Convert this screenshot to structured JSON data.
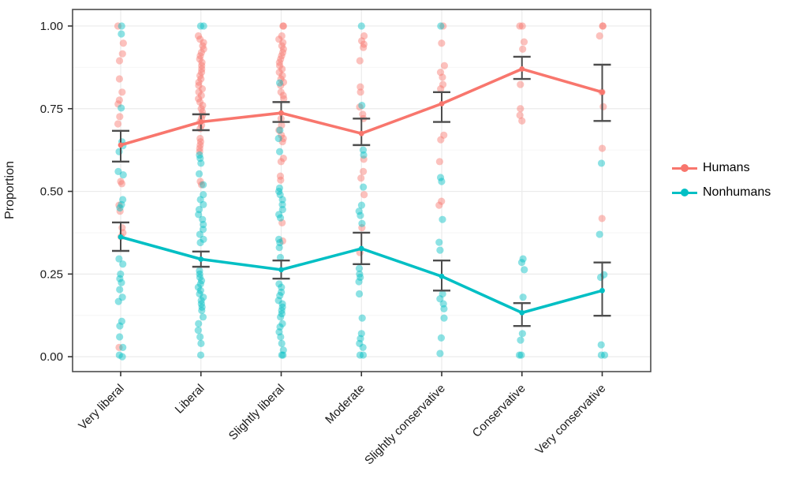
{
  "chart_data": {
    "type": "scatter",
    "title": "",
    "xlabel": "",
    "ylabel": "Proportion",
    "categories": [
      "Very liberal",
      "Liberal",
      "Slightly liberal",
      "Moderate",
      "Slightly conservative",
      "Conservative",
      "Very conservative"
    ],
    "ytick_labels": [
      "0.00",
      "0.25",
      "0.50",
      "0.75",
      "1.00"
    ],
    "yticks": [
      0.0,
      0.25,
      0.5,
      0.75,
      1.0
    ],
    "ylim": [
      -0.045,
      1.05
    ],
    "grid": "major+minor horizontal, vertical at categories",
    "legend_position": "right",
    "colors": {
      "humans": "#f8766d",
      "nonhumans": "#00bfc4",
      "errorbar": "#4d4d4d",
      "panel_border": "#4d4d4d",
      "grid_major": "#ebebeb",
      "grid_minor": "#f6f6f6",
      "axis_text": "#1a1a1a"
    },
    "series": [
      {
        "name": "Humans",
        "color": "#f8766d",
        "means": [
          0.64,
          0.71,
          0.737,
          0.675,
          0.765,
          0.87,
          0.8
        ],
        "ci_low": [
          0.59,
          0.685,
          0.71,
          0.64,
          0.71,
          0.84,
          0.713
        ],
        "ci_high": [
          0.683,
          0.733,
          0.77,
          0.72,
          0.8,
          0.907,
          0.883
        ],
        "points": [
          [
            1.0,
            0.948,
            0.916,
            0.895,
            0.84,
            0.8,
            0.776,
            0.764,
            0.726,
            0.704,
            0.53,
            0.523,
            0.458,
            0.44,
            0.39,
            0.375,
            0.363,
            0.028
          ],
          [
            0.97,
            0.96,
            0.95,
            0.94,
            0.93,
            0.92,
            0.91,
            0.9,
            0.89,
            0.88,
            0.87,
            0.86,
            0.85,
            0.84,
            0.83,
            0.82,
            0.81,
            0.8,
            0.79,
            0.78,
            0.77,
            0.76,
            0.75,
            0.74,
            0.73,
            0.72,
            0.71,
            0.7,
            0.69,
            0.66,
            0.65,
            0.64,
            0.63,
            0.62,
            0.53,
            0.52
          ],
          [
            1.0,
            1.0,
            0.97,
            0.96,
            0.95,
            0.94,
            0.93,
            0.92,
            0.91,
            0.9,
            0.89,
            0.88,
            0.87,
            0.86,
            0.85,
            0.84,
            0.83,
            0.82,
            0.8,
            0.79,
            0.78,
            0.72,
            0.7,
            0.685,
            0.67,
            0.66,
            0.65,
            0.6,
            0.59,
            0.546,
            0.534,
            0.405,
            0.35
          ],
          [
            0.97,
            0.955,
            0.945,
            0.935,
            0.895,
            0.816,
            0.8,
            0.755,
            0.733,
            0.72,
            0.597,
            0.56,
            0.54,
            0.49,
            0.39,
            0.315
          ],
          [
            1.0,
            0.948,
            0.88,
            0.86,
            0.845,
            0.823,
            0.81,
            0.67,
            0.656,
            0.59,
            0.47,
            0.458
          ],
          [
            1.0,
            1.0,
            0.952,
            0.93,
            0.823,
            0.75,
            0.73,
            0.713
          ],
          [
            1.0,
            1.0,
            0.97,
            0.8,
            0.756,
            0.63,
            0.418
          ]
        ]
      },
      {
        "name": "Nonhumans",
        "color": "#00bfc4",
        "means": [
          0.362,
          0.295,
          0.263,
          0.327,
          0.243,
          0.133,
          0.2
        ],
        "ci_low": [
          0.32,
          0.272,
          0.236,
          0.28,
          0.2,
          0.093,
          0.124
        ],
        "ci_high": [
          0.406,
          0.318,
          0.291,
          0.375,
          0.291,
          0.162,
          0.285
        ],
        "points": [
          [
            1.0,
            0.976,
            0.752,
            0.65,
            0.638,
            0.62,
            0.56,
            0.55,
            0.475,
            0.46,
            0.45,
            0.296,
            0.28,
            0.25,
            0.236,
            0.224,
            0.203,
            0.18,
            0.167,
            0.107,
            0.093,
            0.06,
            0.028,
            0.005,
            0.0
          ],
          [
            1.0,
            1.0,
            0.61,
            0.6,
            0.585,
            0.553,
            0.52,
            0.49,
            0.475,
            0.46,
            0.445,
            0.43,
            0.415,
            0.4,
            0.385,
            0.37,
            0.355,
            0.345,
            0.26,
            0.25,
            0.24,
            0.23,
            0.22,
            0.21,
            0.2,
            0.19,
            0.18,
            0.17,
            0.16,
            0.15,
            0.14,
            0.12,
            0.1,
            0.08,
            0.06,
            0.04,
            0.005
          ],
          [
            0.828,
            0.685,
            0.66,
            0.62,
            0.51,
            0.5,
            0.49,
            0.475,
            0.46,
            0.445,
            0.43,
            0.42,
            0.355,
            0.345,
            0.33,
            0.3,
            0.22,
            0.21,
            0.195,
            0.185,
            0.17,
            0.16,
            0.15,
            0.14,
            0.13,
            0.12,
            0.1,
            0.09,
            0.075,
            0.06,
            0.04,
            0.02,
            0.005,
            0.005
          ],
          [
            1.0,
            0.76,
            0.625,
            0.61,
            0.513,
            0.458,
            0.44,
            0.427,
            0.403,
            0.267,
            0.25,
            0.24,
            0.227,
            0.19,
            0.117,
            0.07,
            0.055,
            0.04,
            0.028,
            0.005,
            0.005
          ],
          [
            1.0,
            0.542,
            0.53,
            0.415,
            0.346,
            0.322,
            0.19,
            0.175,
            0.16,
            0.145,
            0.117,
            0.057,
            0.01
          ],
          [
            0.296,
            0.285,
            0.263,
            0.18,
            0.07,
            0.05,
            0.005,
            0.005
          ],
          [
            0.585,
            0.37,
            0.248,
            0.24,
            0.036,
            0.005,
            0.005
          ]
        ]
      }
    ]
  },
  "legend": {
    "humans_label": "Humans",
    "nonhumans_label": "Nonhumans"
  }
}
